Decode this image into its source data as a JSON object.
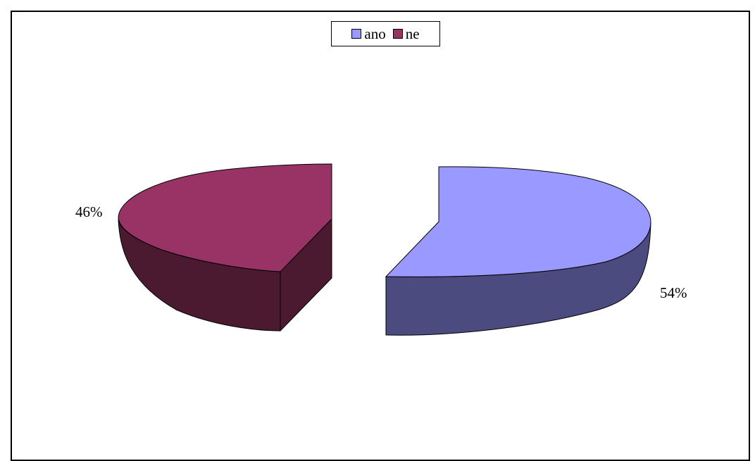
{
  "chart_data": {
    "type": "pie",
    "style": "3d-exploded",
    "slices": [
      {
        "label": "ano",
        "value": 54,
        "value_label": "54%",
        "color": "#9999ff",
        "side_color": "#4b4b7f"
      },
      {
        "label": "ne",
        "value": 46,
        "value_label": "46%",
        "color": "#993366",
        "side_color": "#4c1a30"
      }
    ],
    "legend_position": "top-center",
    "title": ""
  }
}
